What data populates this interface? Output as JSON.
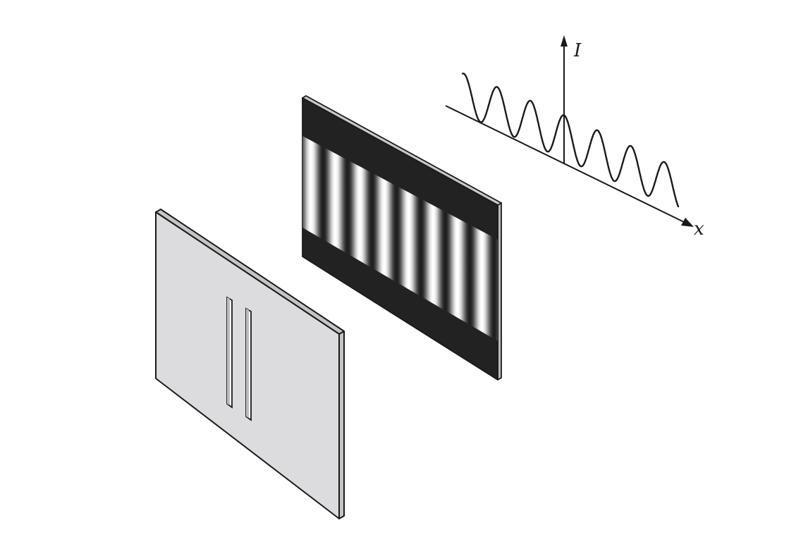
{
  "figure": {
    "intensity_axis_label": "I",
    "position_axis_label": "x",
    "slit_count": 2,
    "fringe_count_visible": 8,
    "colors": {
      "slit_panel": "#dcdcde",
      "slit_panel_edge": "#bfbfc1",
      "screen_band": "#222222",
      "line": "#1a1a1a"
    }
  }
}
